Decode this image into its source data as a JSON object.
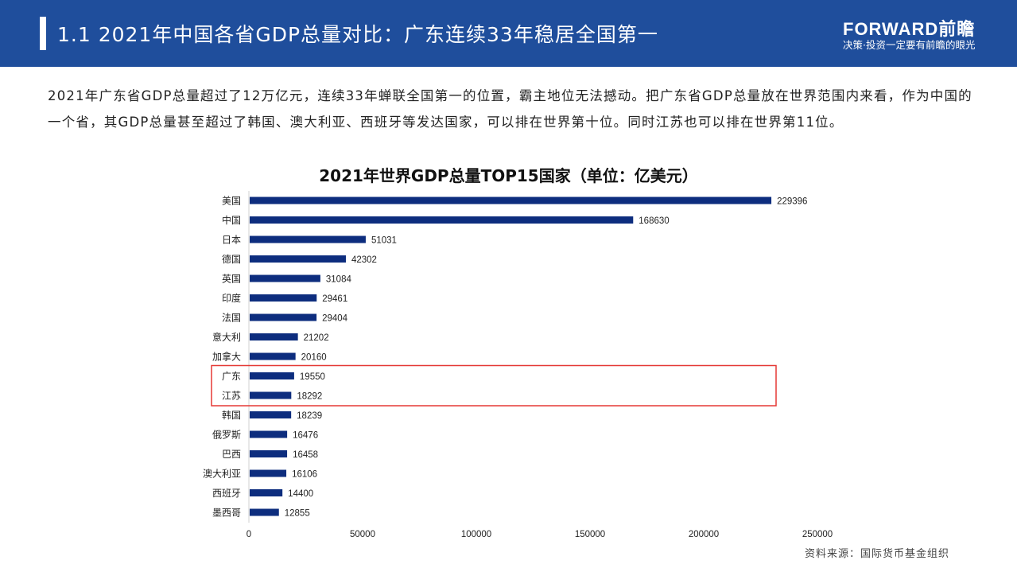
{
  "header": {
    "title": "1.1  2021年中国各省GDP总量对比：广东连续33年稳居全国第一",
    "logo": "FORWARD前瞻",
    "slogan": "决策·投资一定要有前瞻的眼光"
  },
  "paragraph": "2021年广东省GDP总量超过了12万亿元，连续33年蝉联全国第一的位置，霸主地位无法撼动。把广东省GDP总量放在世界范围内来看，作为中国的一个省，其GDP总量甚至超过了韩国、澳大利亚、西班牙等发达国家，可以排在世界第十位。同时江苏也可以排在世界第11位。",
  "source": "资料来源：国际货币基金组织",
  "colors": {
    "bar": "#0d2d7e",
    "header": "#1f4e9c",
    "highlight": "#e53935"
  },
  "chart_data": {
    "type": "bar",
    "orientation": "horizontal",
    "title": "2021年世界GDP总量TOP15国家（单位：亿美元）",
    "categories": [
      "美国",
      "中国",
      "日本",
      "德国",
      "英国",
      "印度",
      "法国",
      "意大利",
      "加拿大",
      "广东",
      "江苏",
      "韩国",
      "俄罗斯",
      "巴西",
      "澳大利亚",
      "西班牙",
      "墨西哥"
    ],
    "values": [
      229396,
      168630,
      51031,
      42302,
      31084,
      29461,
      29404,
      21202,
      20160,
      19550,
      18292,
      18239,
      16476,
      16458,
      16106,
      14400,
      12855
    ],
    "highlighted": [
      "广东",
      "江苏"
    ],
    "xlim": [
      0,
      250000
    ],
    "xticks": [
      0,
      50000,
      100000,
      150000,
      200000,
      250000
    ],
    "grid": false,
    "legend": "none"
  }
}
